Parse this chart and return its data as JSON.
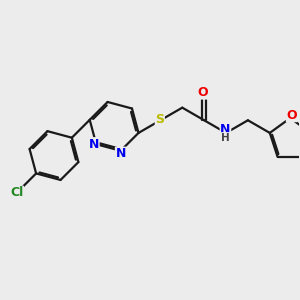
{
  "bg_color": "#ececec",
  "bond_color": "#1a1a1a",
  "bond_width": 1.6,
  "atom_colors": {
    "N": "#0000ee",
    "O": "#ee0000",
    "S": "#bbbb00",
    "Cl": "#228822",
    "C": "#1a1a1a",
    "H": "#444444"
  },
  "font_size_atom": 9,
  "font_size_small": 7.5
}
